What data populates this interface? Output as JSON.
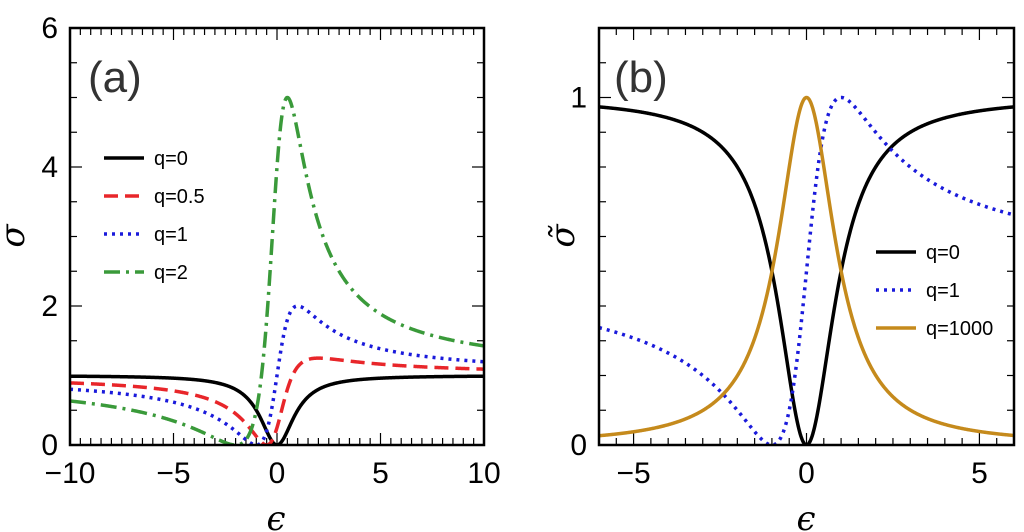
{
  "chart_data": [
    {
      "type": "line",
      "panel_label": "(a)",
      "xlabel": "ϵ",
      "ylabel": "σ",
      "xlim": [
        -10,
        10
      ],
      "ylim": [
        0,
        6
      ],
      "xticks": [
        -10,
        -5,
        0,
        5,
        10
      ],
      "xtick_labels": [
        "−10",
        "−5",
        "0",
        "5",
        "10"
      ],
      "yticks": [
        0,
        2,
        4,
        6
      ],
      "ytick_labels": [
        "0",
        "2",
        "4",
        "6"
      ],
      "formula": "(q + eps)^2 / (1 + eps^2)",
      "legend_position": "center-left",
      "series": [
        {
          "name": "q=0",
          "q": 0,
          "color": "#000000",
          "style": "solid"
        },
        {
          "name": "q=0.5",
          "q": 0.5,
          "color": "#e8262a",
          "style": "dashed"
        },
        {
          "name": "q=1",
          "q": 1,
          "color": "#1a1adb",
          "style": "dotted"
        },
        {
          "name": "q=2",
          "q": 2,
          "color": "#3a9a3a",
          "style": "dashdot"
        }
      ]
    },
    {
      "type": "line",
      "panel_label": "(b)",
      "xlabel": "ϵ",
      "ylabel": "σ̃",
      "xlim": [
        -6,
        6
      ],
      "ylim": [
        0,
        1.2
      ],
      "xticks": [
        -5,
        0,
        5
      ],
      "xtick_labels": [
        "−5",
        "0",
        "5"
      ],
      "yticks": [
        0,
        1
      ],
      "ytick_labels": [
        "0",
        "1"
      ],
      "formula": "(q + eps)^2 / ((1 + eps^2)(1 + q^2))",
      "legend_position": "center-right",
      "series": [
        {
          "name": "q=0",
          "q": 0,
          "color": "#000000",
          "style": "solid"
        },
        {
          "name": "q=1",
          "q": 1,
          "color": "#1a1adb",
          "style": "dotted"
        },
        {
          "name": "q=1000",
          "q": 1000,
          "color": "#c58a1c",
          "style": "solid"
        }
      ]
    }
  ]
}
